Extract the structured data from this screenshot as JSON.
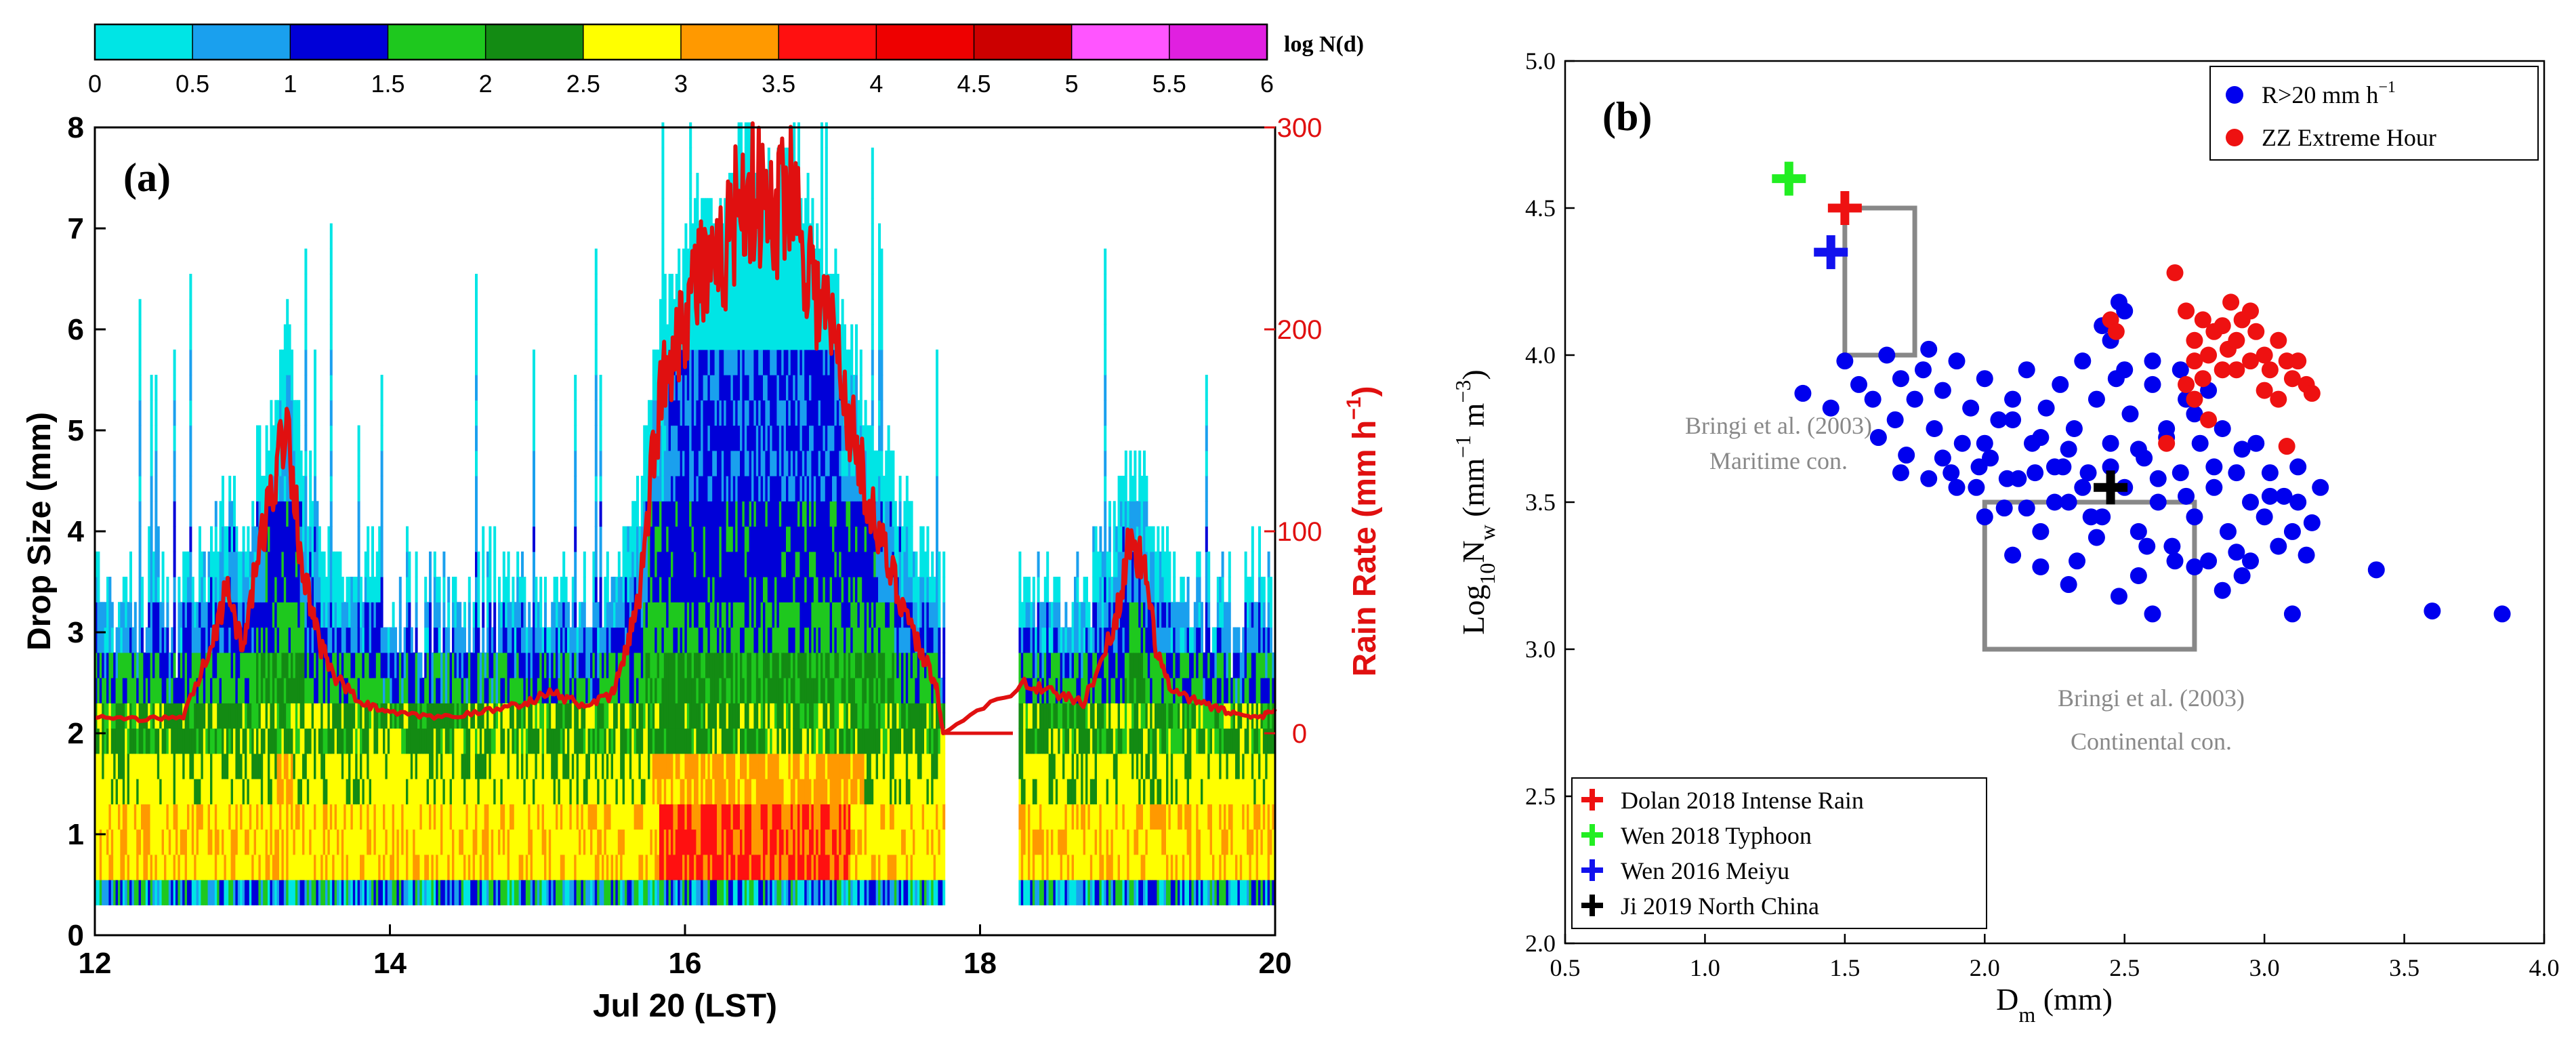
{
  "chart_data": [
    {
      "panel": "(a)",
      "type": "heatmap",
      "xlabel": "Jul 20 (LST)",
      "ylabel": "Drop Size (mm)",
      "y2label_parts": [
        "Rain Rate (mm h",
        "−1",
        ")"
      ],
      "x_ticks": [
        "12",
        "14",
        "16",
        "18",
        "20"
      ],
      "xlim": [
        12,
        20
      ],
      "y_ticks": [
        "0",
        "1",
        "2",
        "3",
        "4",
        "5",
        "6",
        "7",
        "8"
      ],
      "ylim": [
        0,
        8
      ],
      "y2_ticks": [
        "0",
        "100",
        "200",
        "300"
      ],
      "y2lim": [
        -100,
        300
      ],
      "colorbar": {
        "label": "log N(d)",
        "ticks": [
          "0",
          "0.5",
          "1",
          "1.5",
          "2",
          "2.5",
          "3",
          "3.5",
          "4",
          "4.5",
          "5",
          "5.5",
          "6"
        ],
        "colors": [
          "#00e5e5",
          "#1aa0ee",
          "#0000d8",
          "#1ec81e",
          "#138b13",
          "#ffff00",
          "#ff9900",
          "#ff1010",
          "#ee0000",
          "#cc0000",
          "#ff55ff",
          "#e020e0"
        ]
      },
      "rain_rate_series": {
        "name": "Rain Rate",
        "color": "#e01010",
        "t": [
          12.0,
          12.3,
          12.6,
          12.8,
          12.9,
          13.0,
          13.1,
          13.2,
          13.3,
          13.4,
          13.5,
          13.6,
          13.8,
          14.0,
          14.3,
          14.6,
          14.9,
          15.1,
          15.3,
          15.5,
          15.6,
          15.7,
          15.8,
          15.9,
          16.0,
          16.1,
          16.2,
          16.3,
          16.4,
          16.5,
          16.6,
          16.7,
          16.8,
          16.9,
          17.0,
          17.1,
          17.2,
          17.3,
          17.4,
          17.5,
          17.6,
          17.7,
          17.75,
          18.0,
          18.1,
          18.2,
          18.3,
          18.5,
          18.7,
          18.9,
          19.0,
          19.1,
          19.2,
          19.3,
          19.5,
          19.7,
          19.9,
          20.0
        ],
        "rate": [
          8,
          7,
          8,
          45,
          75,
          40,
          85,
          120,
          160,
          85,
          50,
          30,
          15,
          10,
          8,
          10,
          15,
          20,
          14,
          18,
          40,
          75,
          150,
          190,
          210,
          230,
          220,
          250,
          270,
          265,
          250,
          280,
          245,
          215,
          200,
          160,
          130,
          100,
          80,
          60,
          40,
          25,
          0,
          0,
          0,
          10,
          25,
          20,
          15,
          50,
          90,
          85,
          40,
          20,
          15,
          10,
          8,
          12
        ]
      },
      "density_bands": [
        {
          "size_range": [
            0.3,
            0.4
          ],
          "level": "0–1.5 mixed"
        },
        {
          "size_range": [
            0.5,
            1.0
          ],
          "level": "3–4.5 (peak near 16.3–17.0)"
        },
        {
          "size_range": [
            1.0,
            2.0
          ],
          "level": "2–3.5"
        },
        {
          "size_range": [
            2.0,
            3.0
          ],
          "level": "1.5–2.5"
        },
        {
          "size_range": [
            3.0,
            5.0
          ],
          "level": "0–2.5"
        },
        {
          "size_range": [
            5.0,
            7.5
          ],
          "level": "0–1.5 (15.5–17.2 only)"
        }
      ],
      "gap": [
        17.75,
        18.25
      ]
    },
    {
      "panel": "(b)",
      "type": "scatter",
      "xlabel_parts": [
        "D",
        "m",
        " (mm)"
      ],
      "ylabel_parts": [
        "Log",
        "10",
        "N",
        "w",
        " (mm",
        "−1",
        " m",
        "−3",
        ")"
      ],
      "xlim": [
        0.5,
        4.0
      ],
      "ylim": [
        2.0,
        5.0
      ],
      "x_ticks": [
        "0.5",
        "1.0",
        "1.5",
        "2.0",
        "2.5",
        "3.0",
        "3.5",
        "4.0"
      ],
      "y_ticks": [
        "2.0",
        "2.5",
        "3.0",
        "3.5",
        "4.0",
        "4.5",
        "5.0"
      ],
      "legend_top": {
        "position": "top-right",
        "entries": [
          {
            "label_parts": [
              "R>20 mm h",
              "−1"
            ],
            "color": "#0000ee"
          },
          {
            "label_parts": [
              "ZZ Extreme Hour",
              ""
            ],
            "color": "#ee1111"
          }
        ]
      },
      "legend_bottom": {
        "position": "bottom-left",
        "entries": [
          {
            "label": "Dolan 2018 Intense Rain",
            "color": "#ee1111"
          },
          {
            "label": "Wen 2018 Typhoon",
            "color": "#22ee22"
          },
          {
            "label": "Wen 2016 Meiyu",
            "color": "#1111ee"
          },
          {
            "label": "Ji 2019 North China",
            "color": "#000000"
          }
        ]
      },
      "boxes": [
        {
          "name": "maritime",
          "x": [
            1.5,
            1.75
          ],
          "y": [
            4.0,
            4.5
          ],
          "label1": "Bringi et al. (2003)",
          "label2": "Maritime con."
        },
        {
          "name": "continental",
          "x": [
            2.0,
            2.75
          ],
          "y": [
            3.0,
            3.5
          ],
          "label1": "Bringi et al. (2003)",
          "label2": "Continental con."
        }
      ],
      "crosses": [
        {
          "x": 1.5,
          "y": 4.5,
          "color": "#ee1111"
        },
        {
          "x": 1.3,
          "y": 4.6,
          "color": "#22ee22"
        },
        {
          "x": 1.45,
          "y": 4.35,
          "color": "#1111ee"
        },
        {
          "x": 2.45,
          "y": 3.55,
          "color": "#000000"
        }
      ],
      "series": [
        {
          "name": "R>20 mm h−1",
          "color": "#0000ee",
          "points": [
            [
              1.35,
              3.87
            ],
            [
              1.45,
              3.82
            ],
            [
              1.5,
              3.98
            ],
            [
              1.55,
              3.9
            ],
            [
              1.6,
              3.85
            ],
            [
              1.62,
              3.72
            ],
            [
              1.65,
              4.0
            ],
            [
              1.68,
              3.78
            ],
            [
              1.7,
              3.92
            ],
            [
              1.72,
              3.66
            ],
            [
              1.75,
              3.85
            ],
            [
              1.78,
              3.95
            ],
            [
              1.8,
              4.02
            ],
            [
              1.82,
              3.75
            ],
            [
              1.85,
              3.88
            ],
            [
              1.88,
              3.6
            ],
            [
              1.9,
              3.98
            ],
            [
              1.92,
              3.7
            ],
            [
              1.95,
              3.82
            ],
            [
              1.97,
              3.55
            ],
            [
              2.0,
              3.92
            ],
            [
              2.02,
              3.65
            ],
            [
              2.05,
              3.78
            ],
            [
              2.07,
              3.48
            ],
            [
              2.1,
              3.85
            ],
            [
              2.12,
              3.58
            ],
            [
              2.15,
              3.95
            ],
            [
              2.17,
              3.7
            ],
            [
              2.2,
              3.4
            ],
            [
              2.22,
              3.82
            ],
            [
              2.25,
              3.62
            ],
            [
              2.27,
              3.9
            ],
            [
              2.3,
              3.5
            ],
            [
              2.32,
              3.75
            ],
            [
              2.35,
              3.98
            ],
            [
              2.37,
              3.6
            ],
            [
              2.4,
              3.85
            ],
            [
              2.42,
              3.45
            ],
            [
              2.45,
              3.7
            ],
            [
              2.47,
              3.92
            ],
            [
              2.5,
              3.55
            ],
            [
              2.52,
              3.8
            ],
            [
              2.55,
              3.4
            ],
            [
              2.57,
              3.65
            ],
            [
              2.6,
              3.9
            ],
            [
              2.62,
              3.5
            ],
            [
              2.65,
              3.75
            ],
            [
              2.67,
              3.35
            ],
            [
              2.7,
              3.6
            ],
            [
              2.72,
              3.85
            ],
            [
              2.75,
              3.45
            ],
            [
              2.77,
              3.7
            ],
            [
              2.8,
              3.3
            ],
            [
              2.82,
              3.55
            ],
            [
              2.85,
              3.75
            ],
            [
              2.87,
              3.4
            ],
            [
              2.9,
              3.6
            ],
            [
              2.92,
              3.25
            ],
            [
              2.95,
              3.5
            ],
            [
              2.97,
              3.7
            ],
            [
              3.0,
              3.45
            ],
            [
              3.02,
              3.6
            ],
            [
              3.05,
              3.35
            ],
            [
              3.07,
              3.52
            ],
            [
              3.1,
              3.4
            ],
            [
              3.12,
              3.62
            ],
            [
              3.15,
              3.32
            ],
            [
              3.17,
              3.43
            ],
            [
              2.1,
              3.32
            ],
            [
              2.2,
              3.28
            ],
            [
              2.3,
              3.22
            ],
            [
              2.4,
              3.38
            ],
            [
              2.55,
              3.25
            ],
            [
              2.6,
              3.12
            ],
            [
              2.75,
              3.28
            ],
            [
              2.85,
              3.2
            ],
            [
              2.33,
              3.3
            ],
            [
              2.48,
              3.18
            ],
            [
              2.68,
              3.3
            ],
            [
              2.9,
              3.33
            ],
            [
              1.9,
              3.55
            ],
            [
              2.0,
              3.45
            ],
            [
              2.15,
              3.48
            ],
            [
              2.25,
              3.5
            ],
            [
              2.35,
              3.55
            ],
            [
              2.45,
              3.62
            ],
            [
              2.55,
              3.68
            ],
            [
              2.65,
              3.72
            ],
            [
              2.75,
              3.8
            ],
            [
              2.5,
              3.95
            ],
            [
              2.45,
              4.05
            ],
            [
              2.5,
              4.15
            ],
            [
              2.48,
              4.18
            ],
            [
              2.42,
              4.1
            ],
            [
              2.6,
              3.98
            ],
            [
              2.7,
              3.95
            ],
            [
              2.8,
              3.88
            ],
            [
              2.3,
              3.68
            ],
            [
              2.2,
              3.72
            ],
            [
              2.1,
              3.78
            ],
            [
              2.0,
              3.7
            ],
            [
              1.85,
              3.65
            ],
            [
              1.8,
              3.58
            ],
            [
              1.7,
              3.6
            ],
            [
              2.62,
              3.58
            ],
            [
              2.72,
              3.52
            ],
            [
              2.82,
              3.62
            ],
            [
              2.92,
              3.68
            ],
            [
              3.02,
              3.52
            ],
            [
              3.1,
              3.12
            ],
            [
              3.4,
              3.27
            ],
            [
              3.6,
              3.13
            ],
            [
              3.85,
              3.12
            ],
            [
              3.2,
              3.55
            ],
            [
              3.12,
              3.5
            ],
            [
              2.95,
              3.3
            ],
            [
              2.58,
              3.35
            ],
            [
              2.38,
              3.45
            ],
            [
              2.28,
              3.62
            ],
            [
              2.18,
              3.6
            ],
            [
              2.08,
              3.58
            ],
            [
              1.98,
              3.62
            ]
          ]
        },
        {
          "name": "ZZ Extreme Hour",
          "color": "#ee1111",
          "points": [
            [
              2.45,
              4.12
            ],
            [
              2.47,
              4.08
            ],
            [
              2.68,
              4.28
            ],
            [
              2.72,
              4.15
            ],
            [
              2.75,
              4.05
            ],
            [
              2.78,
              4.12
            ],
            [
              2.8,
              4.0
            ],
            [
              2.82,
              4.08
            ],
            [
              2.85,
              4.1
            ],
            [
              2.87,
              4.02
            ],
            [
              2.9,
              4.05
            ],
            [
              2.92,
              4.12
            ],
            [
              2.95,
              3.98
            ],
            [
              2.97,
              4.08
            ],
            [
              3.0,
              4.0
            ],
            [
              3.02,
              3.95
            ],
            [
              3.05,
              4.05
            ],
            [
              3.08,
              3.98
            ],
            [
              3.1,
              3.92
            ],
            [
              3.12,
              3.98
            ],
            [
              3.15,
              3.9
            ],
            [
              3.17,
              3.87
            ],
            [
              3.0,
              3.88
            ],
            [
              2.95,
              4.15
            ],
            [
              2.88,
              4.18
            ],
            [
              2.78,
              3.92
            ],
            [
              2.75,
              3.85
            ],
            [
              2.8,
              3.78
            ],
            [
              2.65,
              3.7
            ],
            [
              2.75,
              3.98
            ],
            [
              2.72,
              3.9
            ],
            [
              3.08,
              3.69
            ],
            [
              3.05,
              3.85
            ],
            [
              2.9,
              3.95
            ],
            [
              2.85,
              3.95
            ]
          ]
        }
      ]
    }
  ]
}
